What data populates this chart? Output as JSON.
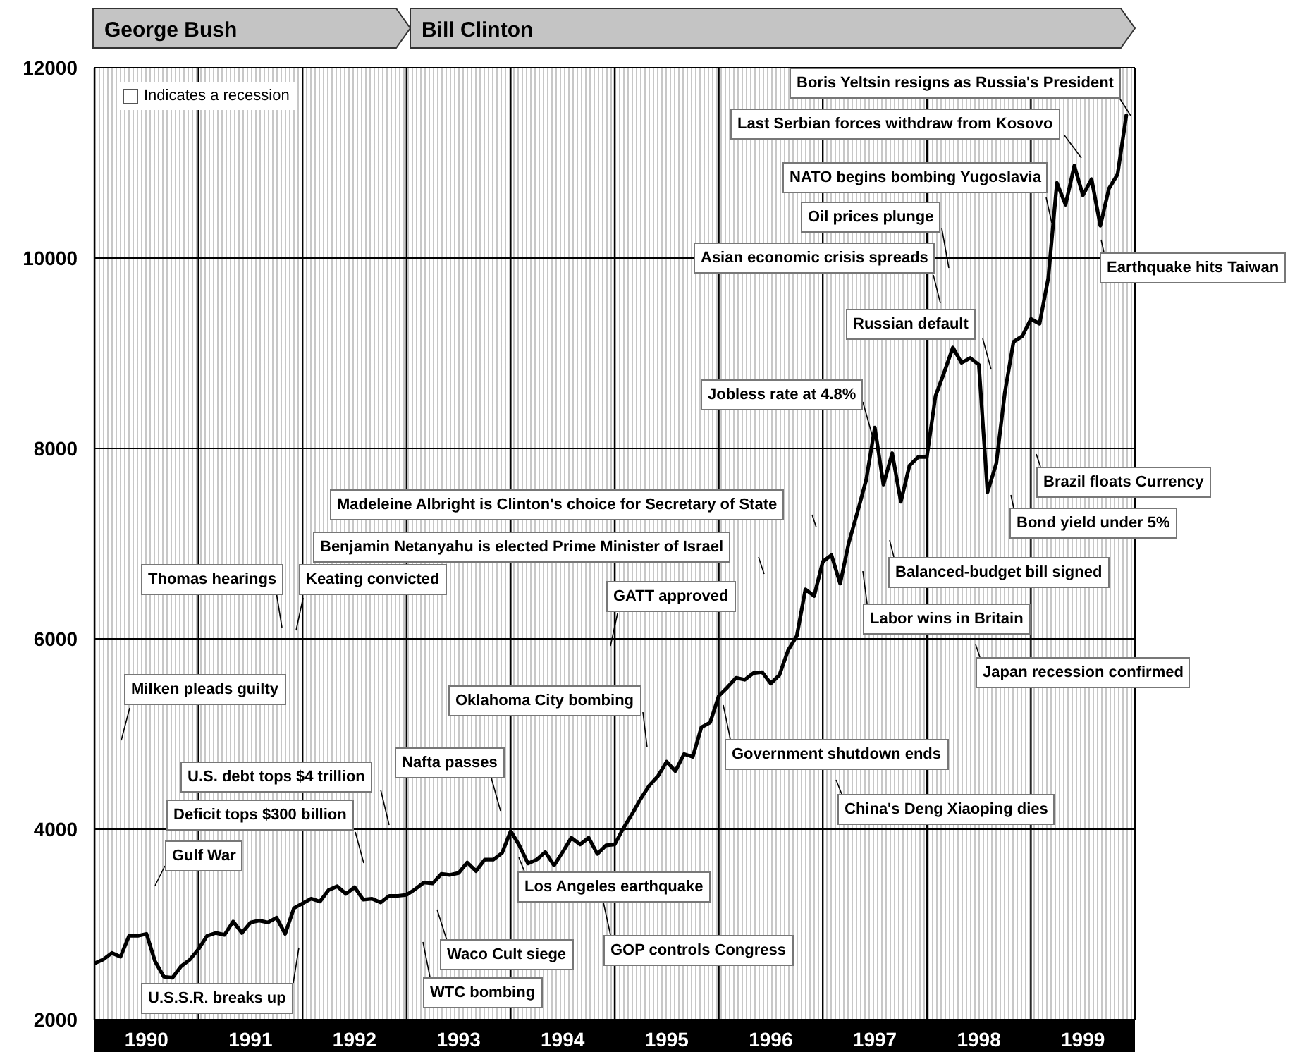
{
  "chart_data": {
    "type": "line",
    "xlim": [
      1990,
      2000
    ],
    "xticks": [
      {
        "value": 1990,
        "label": null
      },
      {
        "value": 1990.5,
        "label": "1990"
      },
      {
        "value": 1991,
        "label": null
      },
      {
        "value": 1991.5,
        "label": "1991"
      },
      {
        "value": 1992,
        "label": null
      },
      {
        "value": 1992.5,
        "label": "1992"
      },
      {
        "value": 1993,
        "label": null
      },
      {
        "value": 1993.5,
        "label": "1993"
      },
      {
        "value": 1994,
        "label": null
      },
      {
        "value": 1994.5,
        "label": "1994"
      },
      {
        "value": 1995,
        "label": null
      },
      {
        "value": 1995.5,
        "label": "1995"
      },
      {
        "value": 1996,
        "label": null
      },
      {
        "value": 1996.5,
        "label": "1996"
      },
      {
        "value": 1997,
        "label": null
      },
      {
        "value": 1997.5,
        "label": "1997"
      },
      {
        "value": 1998,
        "label": null
      },
      {
        "value": 1998.5,
        "label": "1998"
      },
      {
        "value": 1999,
        "label": null
      },
      {
        "value": 1999.5,
        "label": "1999"
      },
      {
        "value": 2000,
        "label": null
      }
    ],
    "ylim": [
      2000,
      12000
    ],
    "yticks": [
      2000,
      4000,
      6000,
      8000,
      10000,
      12000
    ],
    "grid": true,
    "series": [
      {
        "color": "#000000",
        "x": [
          1990,
          1990.083,
          1990.167,
          1990.25,
          1990.333,
          1990.417,
          1990.5,
          1990.583,
          1990.667,
          1990.75,
          1990.833,
          1990.917,
          1991,
          1991.083,
          1991.167,
          1991.25,
          1991.333,
          1991.417,
          1991.5,
          1991.583,
          1991.667,
          1991.75,
          1991.833,
          1991.917,
          1992,
          1992.083,
          1992.167,
          1992.25,
          1992.333,
          1992.417,
          1992.5,
          1992.583,
          1992.667,
          1992.75,
          1992.833,
          1992.917,
          1993,
          1993.083,
          1993.167,
          1993.25,
          1993.333,
          1993.417,
          1993.5,
          1993.583,
          1993.667,
          1993.75,
          1993.833,
          1993.917,
          1994,
          1994.083,
          1994.167,
          1994.25,
          1994.333,
          1994.417,
          1994.5,
          1994.583,
          1994.667,
          1994.75,
          1994.833,
          1994.917,
          1995,
          1995.083,
          1995.167,
          1995.25,
          1995.333,
          1995.417,
          1995.5,
          1995.583,
          1995.667,
          1995.75,
          1995.833,
          1995.917,
          1996,
          1996.083,
          1996.167,
          1996.25,
          1996.333,
          1996.417,
          1996.5,
          1996.583,
          1996.667,
          1996.75,
          1996.833,
          1996.917,
          1997,
          1997.083,
          1997.167,
          1997.25,
          1997.333,
          1997.417,
          1997.5,
          1997.583,
          1997.667,
          1997.75,
          1997.833,
          1997.917,
          1998,
          1998.083,
          1998.167,
          1998.25,
          1998.333,
          1998.417,
          1998.5,
          1998.583,
          1998.667,
          1998.75,
          1998.833,
          1998.917,
          1999,
          1999.083,
          1999.167,
          1999.25,
          1999.333,
          1999.417,
          1999.5,
          1999.583,
          1999.667,
          1999.75,
          1999.833,
          1999.917
        ],
        "values": [
          2590,
          2630,
          2700,
          2660,
          2880,
          2880,
          2900,
          2610,
          2450,
          2440,
          2560,
          2630,
          2740,
          2880,
          2910,
          2890,
          3030,
          2910,
          3020,
          3040,
          3020,
          3070,
          2900,
          3170,
          3220,
          3270,
          3240,
          3360,
          3400,
          3320,
          3390,
          3260,
          3270,
          3230,
          3300,
          3300,
          3310,
          3370,
          3440,
          3430,
          3530,
          3520,
          3540,
          3650,
          3560,
          3680,
          3680,
          3750,
          3980,
          3830,
          3640,
          3680,
          3760,
          3620,
          3760,
          3910,
          3840,
          3910,
          3740,
          3830,
          3840,
          4010,
          4160,
          4320,
          4460,
          4560,
          4710,
          4610,
          4790,
          4760,
          5070,
          5120,
          5400,
          5490,
          5590,
          5570,
          5640,
          5650,
          5530,
          5620,
          5880,
          6030,
          6520,
          6450,
          6810,
          6880,
          6580,
          7010,
          7330,
          7670,
          8220,
          7620,
          7950,
          7440,
          7820,
          7910,
          7910,
          8550,
          8800,
          9060,
          8900,
          8950,
          8880,
          7540,
          7840,
          8590,
          9120,
          9180,
          9360,
          9310,
          9790,
          10790,
          10560,
          10970,
          10660,
          10830,
          10340,
          10730,
          10880,
          11500
        ]
      }
    ],
    "annotations": [
      "George Bush",
      "Bill Clinton",
      "Milken pleads guilty",
      "Gulf War",
      "U.S.S.R. breaks up",
      "Thomas hearings",
      "Keating convicted",
      "Deficit tops $300 billion",
      "U.S. debt tops $4 trillion",
      "Nafta passes",
      "WTC bombing",
      "Waco Cult siege",
      "Los Angeles earthquake",
      "GOP controls Congress",
      "Oklahoma City bombing",
      "GATT approved",
      "Government shutdown ends",
      "Benjamin Netanyahu is elected Prime Minister of Israel",
      "Madeleine Albright is Clinton's choice for Secretary of State",
      "China's Deng Xiaoping dies",
      "Labor wins in Britain",
      "Balanced-budget bill signed",
      "Jobless rate at 4.8%",
      "Japan recession confirmed",
      "Asian economic crisis spreads",
      "Oil prices plunge",
      "Russian default",
      "Bond yield under 5%",
      "Brazil floats Currency",
      "NATO begins bombing Yugoslavia",
      "Last Serbian forces withdraw from Kosovo",
      "Earthquake hits Taiwan",
      "Boris Yeltsin resigns as Russia's President",
      "Indicates a recession"
    ]
  }
}
